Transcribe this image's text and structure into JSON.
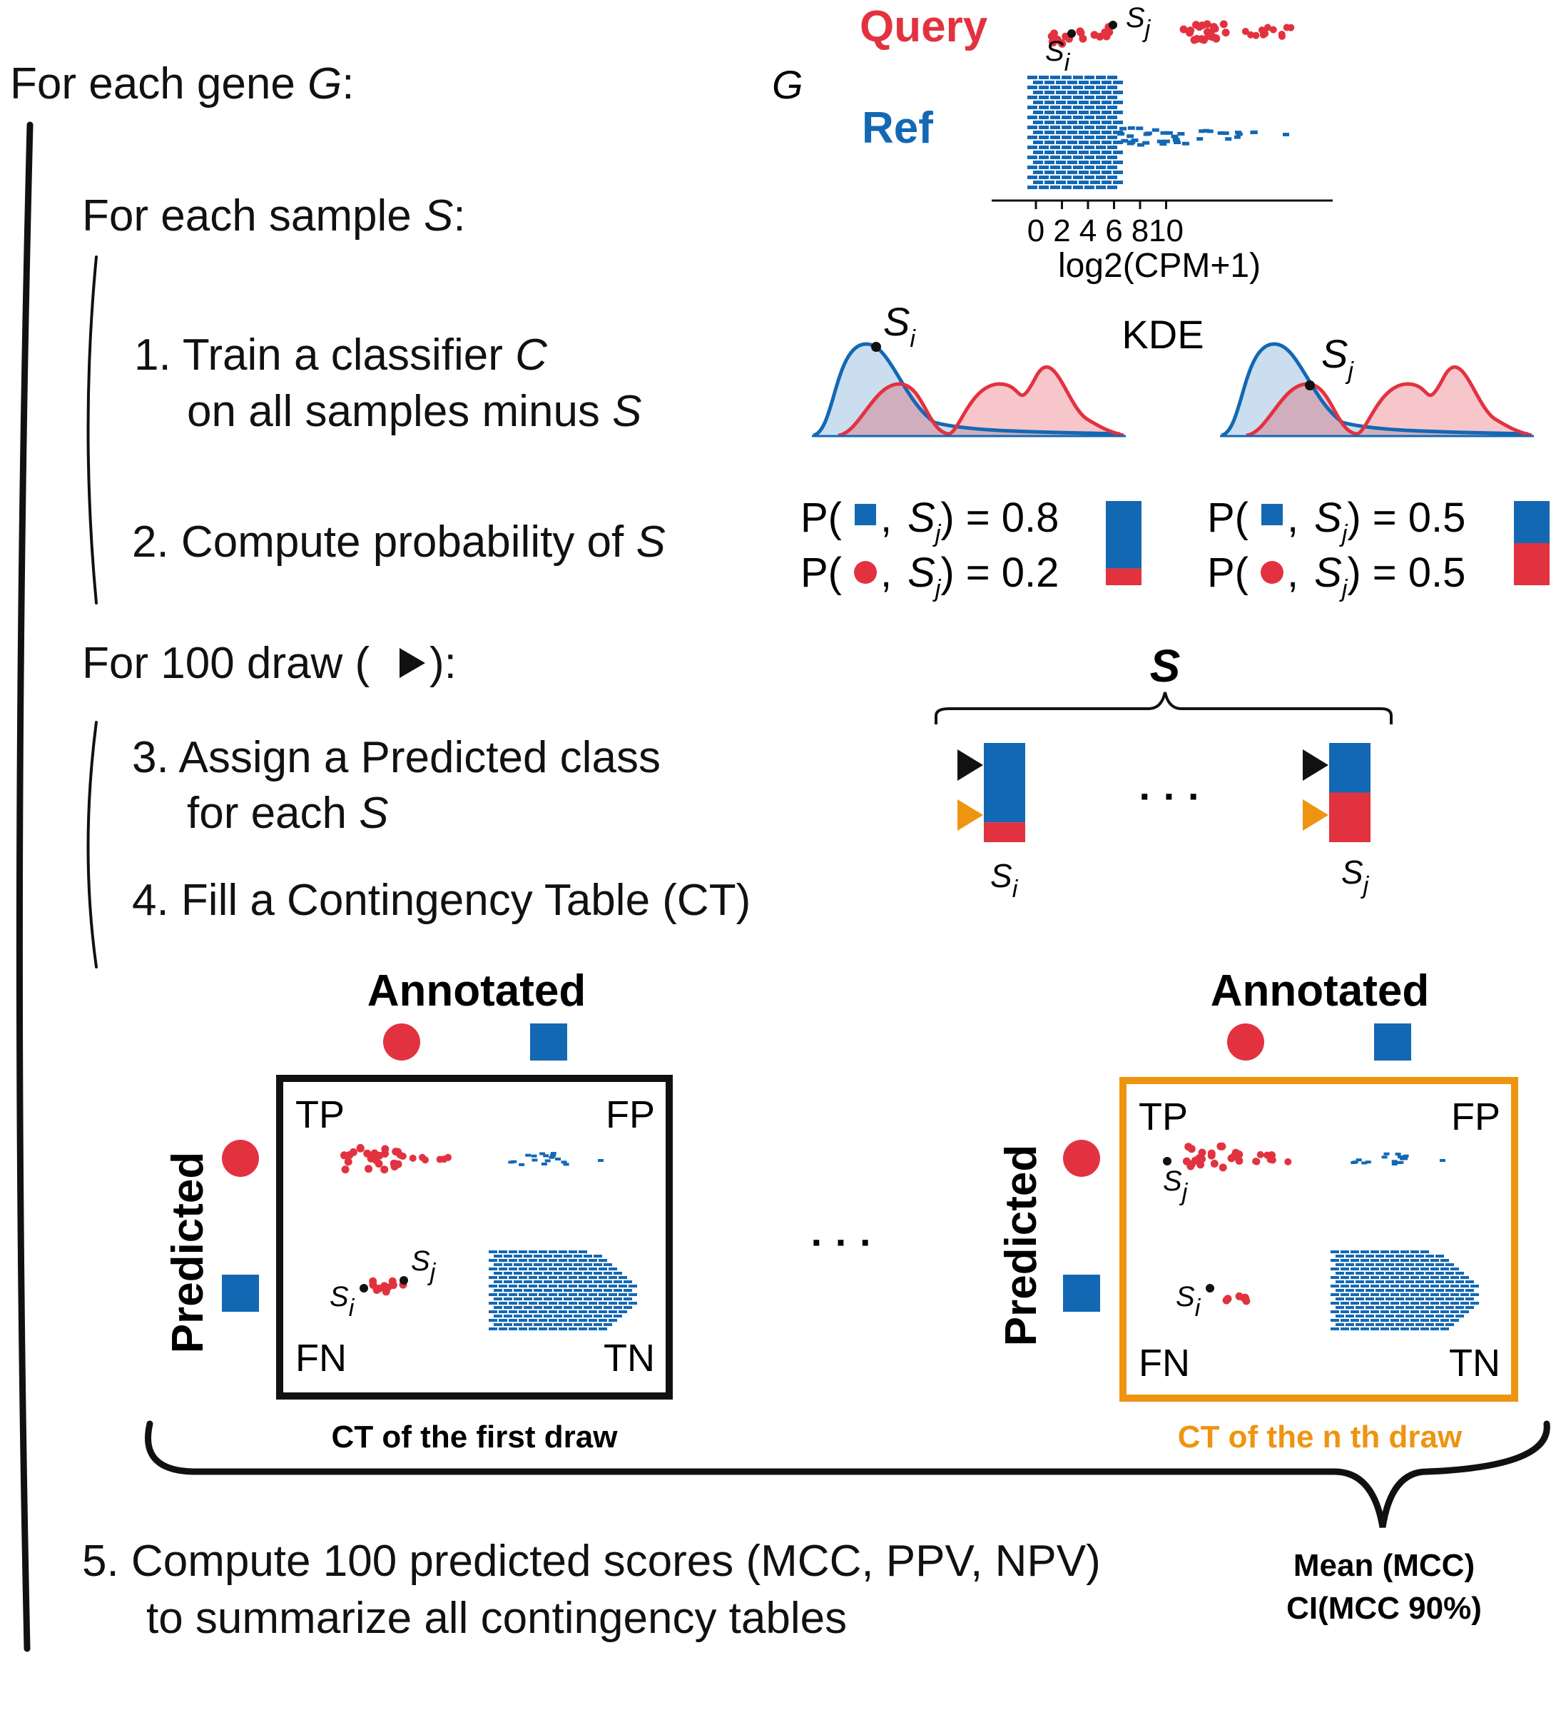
{
  "steps": {
    "gene_loop": {
      "prefix": "For each gene ",
      "var": "G",
      "suffix": ":"
    },
    "sample_loop": {
      "prefix": "For each sample ",
      "var": "S",
      "suffix": ":"
    },
    "step1": {
      "line1_prefix": "1. Train a classifier ",
      "line1_var": "C",
      "line2_prefix": "on all samples minus ",
      "line2_var": "S"
    },
    "step2": {
      "prefix": "2. Compute probability of ",
      "var": "S"
    },
    "draw_loop": {
      "prefix": "For 100 draw (",
      "suffix": "):"
    },
    "step3": {
      "line1": "3. Assign a Predicted class",
      "line2_prefix": "for each ",
      "line2_var": "S"
    },
    "step4": {
      "text": "4. Fill a Contingency Table (CT)"
    },
    "step5": {
      "line1": "5. Compute 100 predicted scores (MCC, PPV, NPV)",
      "line2": "to summarize all contingency tables"
    }
  },
  "swarm": {
    "gene_label": "G",
    "query_label": "Query",
    "ref_label": "Ref",
    "sample_i": {
      "main": "S",
      "sub": "i"
    },
    "sample_j": {
      "main": "S",
      "sub": "j"
    },
    "xlabel": "log2(CPM+1)",
    "xticks": [
      "0",
      "2",
      "4",
      "6",
      "8",
      "10"
    ]
  },
  "kde": {
    "label": "KDE",
    "sample_i": {
      "main": "S",
      "sub": "i"
    },
    "sample_j": {
      "main": "S",
      "sub": "j"
    }
  },
  "probabilities": {
    "left": {
      "ref_text_open": "P(",
      "ref_text_mid": ",",
      "ref_var": "S",
      "ref_sub": "j",
      "ref_value": ") = 0.8",
      "query_text_open": "P(",
      "query_text_mid": ",",
      "query_var": "S",
      "query_sub": "j",
      "query_value": ") = 0.2",
      "ref_prob": 0.8,
      "query_prob": 0.2
    },
    "right": {
      "ref_text_open": "P(",
      "ref_text_mid": ",",
      "ref_var": "S",
      "ref_sub": "j",
      "ref_value": ") = 0.5",
      "query_text_open": "P(",
      "query_text_mid": ",",
      "query_var": "S",
      "query_sub": "j",
      "query_value": ") = 0.5",
      "ref_prob": 0.5,
      "query_prob": 0.5
    }
  },
  "draw": {
    "set_label": "S",
    "ellipsis": "· · ·",
    "left_sample": {
      "main": "S",
      "sub": "i"
    },
    "right_sample": {
      "main": "S",
      "sub": "j"
    }
  },
  "tables": {
    "annotated_label": "Annotated",
    "predicted_label": "Predicted",
    "ellipsis": "· · ·",
    "first": {
      "tp": "TP",
      "fp": "FP",
      "fn": "FN",
      "tn": "TN",
      "caption": "CT of the first draw",
      "sample_i": {
        "main": "S",
        "sub": "i"
      },
      "sample_j": {
        "main": "S",
        "sub": "j"
      }
    },
    "nth": {
      "tp": "TP",
      "fp": "FP",
      "fn": "FN",
      "tn": "TN",
      "caption": "CT of the n th draw",
      "sample_i": {
        "main": "S",
        "sub": "i"
      },
      "sample_j": {
        "main": "S",
        "sub": "j"
      }
    }
  },
  "summary": {
    "line1": "Mean (MCC)",
    "line2": "CI(MCC 90%)"
  },
  "colors": {
    "query": "#e23240",
    "ref": "#1368b4",
    "highlight": "#ee9410",
    "black": "#111111"
  }
}
